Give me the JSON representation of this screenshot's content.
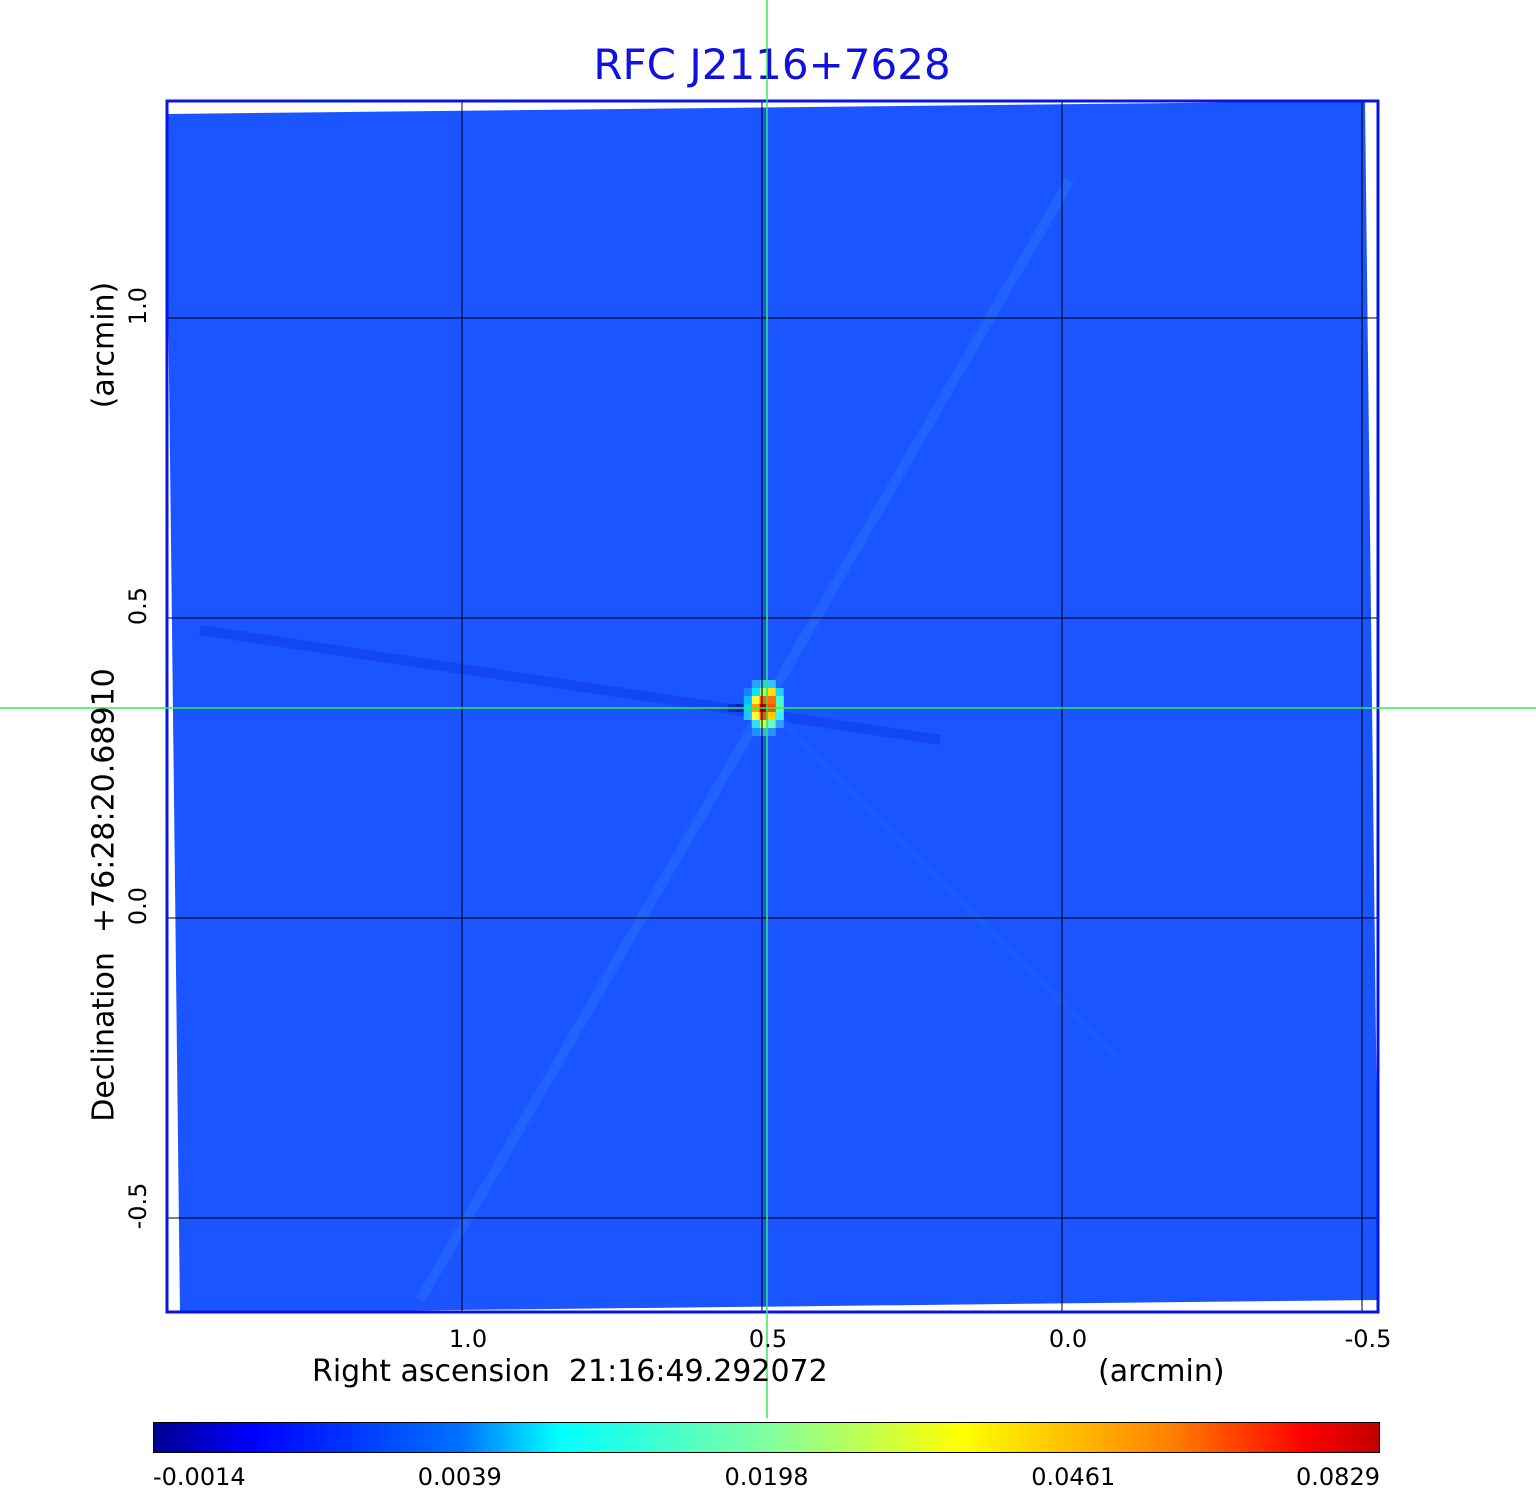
{
  "chart_data": {
    "type": "heatmap",
    "title": "RFC J2116+7628",
    "xlabel": "Right ascension  21:16:49.292072",
    "xunit": "(arcmin)",
    "ylabel": "Declination  +76:28:20.68910",
    "yunit": "(arcmin)",
    "xlim": [
      1.5,
      -0.52
    ],
    "ylim": [
      -0.66,
      1.36
    ],
    "xticks": [
      "1.0",
      "0.5",
      "0.0",
      "-0.5"
    ],
    "xtick_values": [
      1.0,
      0.5,
      0.0,
      -0.5
    ],
    "yticks": [
      "1.0",
      "0.5",
      "0.0",
      "-0.5"
    ],
    "ytick_values": [
      1.0,
      0.5,
      0.0,
      -0.5
    ],
    "grid": true,
    "crosshair": {
      "x": 0.497,
      "y": 0.35
    },
    "source": {
      "x": 0.497,
      "y": 0.35,
      "peak": 0.0829
    },
    "background_level": 0.0,
    "colormap": "jet",
    "colorbar": {
      "ticks": [
        "-0.0014",
        "0.0039",
        "0.0198",
        "0.0461",
        "0.0829"
      ],
      "min": -0.0014,
      "max": 0.0829
    }
  },
  "colors": {
    "title": "#1010e0",
    "frame": "#0a14e0",
    "background": "#1a55ff",
    "grid": "#000000",
    "crosshair": "#33ee55"
  }
}
